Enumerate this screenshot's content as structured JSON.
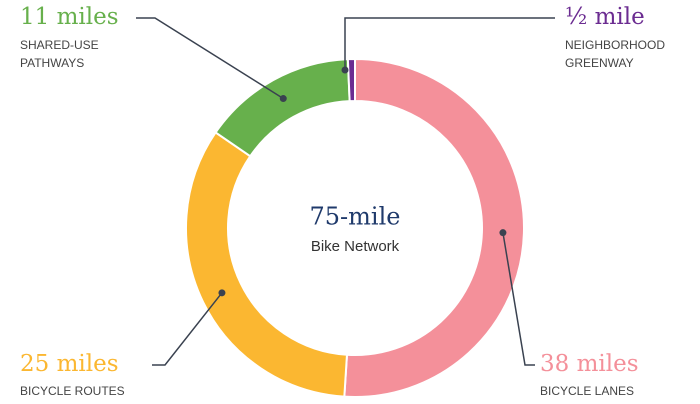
{
  "chart_data": {
    "type": "pie",
    "center_title": "75-mile",
    "center_subtitle": "Bike Network",
    "categories": [
      "BICYCLE LANES",
      "BICYCLE ROUTES",
      "SHARED-USE PATHWAYS",
      "NEIGHBORHOOD GREENWAY"
    ],
    "values": [
      38,
      25,
      11,
      0.5
    ],
    "value_labels": [
      "38 miles",
      "25 miles",
      "11 miles",
      "½ mile"
    ],
    "colors": [
      "#f4909a",
      "#fbb731",
      "#67b04c",
      "#6b2c91"
    ]
  }
}
